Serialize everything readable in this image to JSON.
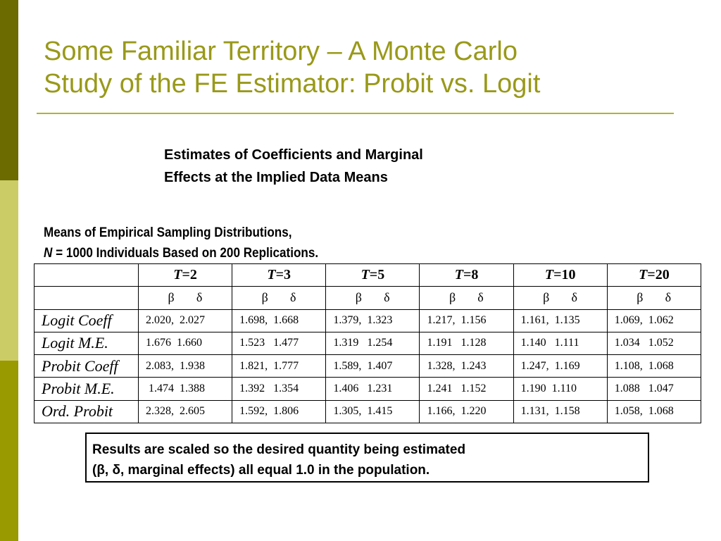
{
  "slide": {
    "title_line1": "Some Familiar Territory – A Monte Carlo",
    "title_line2": "Study of the FE Estimator: Probit vs. Logit",
    "subtitle_line1": "Estimates of Coefficients and Marginal",
    "subtitle_line2": "Effects at the Implied Data Means",
    "caption_line1": "Means of Empirical Sampling Distributions,",
    "caption_line2_var": "N",
    "caption_line2_rest": " = 1000 Individuals Based on 200 Replications.",
    "note_line1": "Results are scaled so the desired quantity being estimated",
    "note_line2": "(β, δ, marginal effects) all equal 1.0 in the population."
  },
  "colors": {
    "title": "#99991a",
    "sidebar_top": "#6b6b00",
    "sidebar_mid": "#cccc66",
    "sidebar_bottom": "#999900"
  },
  "table": {
    "t_var": "T",
    "t_values": [
      "=2",
      "=3",
      "=5",
      "=8",
      "=10",
      "=20"
    ],
    "beta": "β",
    "delta": "δ",
    "rows": [
      {
        "label": "Logit Coeff",
        "cells": [
          "2.020,  2.027",
          "1.698,  1.668",
          "1.379,  1.323",
          "1.217,  1.156",
          "1.161,  1.135",
          "1.069,  1.062"
        ]
      },
      {
        "label": "Logit M.E.",
        "cells": [
          "1.676  1.660",
          "1.523   1.477",
          "1.319   1.254",
          "1.191   1.128",
          "1.140   1.111",
          "1.034   1.052"
        ]
      },
      {
        "label": "Probit Coeff",
        "cells": [
          "2.083,  1.938",
          "1.821,  1.777",
          "1.589,  1.407",
          "1.328,  1.243",
          "1.247,  1.169",
          "1.108,  1.068"
        ]
      },
      {
        "label": "Probit M.E.",
        "cells": [
          " 1.474  1.388",
          "1.392   1.354",
          "1.406   1.231",
          "1.241   1.152",
          "1.190  1.110",
          "1.088   1.047"
        ]
      },
      {
        "label": "Ord. Probit",
        "cells": [
          "2.328,  2.605",
          "1.592,  1.806",
          "1.305,  1.415",
          "1.166,  1.220",
          "1.131,  1.158",
          "1.058,  1.068"
        ]
      }
    ]
  }
}
